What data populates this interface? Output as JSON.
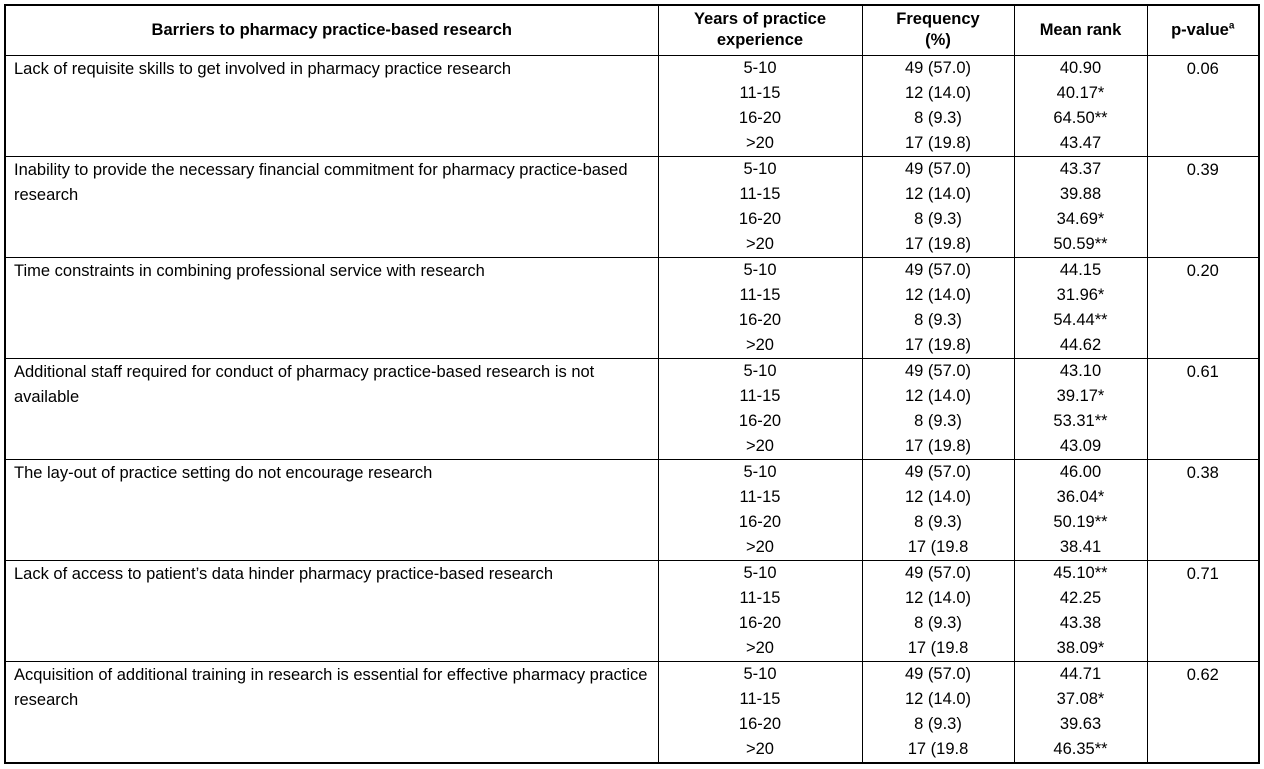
{
  "table": {
    "headers": {
      "barriers": "Barriers to pharmacy practice-based research",
      "years": "Years of practice\nexperience",
      "frequency": "Frequency\n(%)",
      "mean_rank": "Mean rank",
      "p_value": "p-value",
      "p_value_superscript": "a"
    },
    "groups": [
      {
        "barrier": "Lack of requisite skills to get involved in pharmacy practice research",
        "p_value": "0.06",
        "rows": [
          {
            "years": "5-10",
            "frequency": "49 (57.0)",
            "mean_rank": "40.90"
          },
          {
            "years": "11-15",
            "frequency": "12 (14.0)",
            "mean_rank": "40.17*"
          },
          {
            "years": "16-20",
            "frequency": "8 (9.3)",
            "mean_rank": "64.50**"
          },
          {
            "years": ">20",
            "frequency": "17 (19.8)",
            "mean_rank": "43.47"
          }
        ]
      },
      {
        "barrier": "Inability to provide the necessary financial commitment for pharmacy practice-based research",
        "p_value": "0.39",
        "rows": [
          {
            "years": "5-10",
            "frequency": "49 (57.0)",
            "mean_rank": "43.37"
          },
          {
            "years": "11-15",
            "frequency": "12 (14.0)",
            "mean_rank": "39.88"
          },
          {
            "years": "16-20",
            "frequency": "8 (9.3)",
            "mean_rank": "34.69*"
          },
          {
            "years": ">20",
            "frequency": "17 (19.8)",
            "mean_rank": "50.59**"
          }
        ]
      },
      {
        "barrier": "Time constraints in combining professional service with research",
        "p_value": "0.20",
        "rows": [
          {
            "years": "5-10",
            "frequency": "49 (57.0)",
            "mean_rank": "44.15"
          },
          {
            "years": "11-15",
            "frequency": "12 (14.0)",
            "mean_rank": "31.96*"
          },
          {
            "years": "16-20",
            "frequency": "8 (9.3)",
            "mean_rank": "54.44**"
          },
          {
            "years": ">20",
            "frequency": "17 (19.8)",
            "mean_rank": "44.62"
          }
        ]
      },
      {
        "barrier": "Additional staff required for conduct of pharmacy practice-based research is not available",
        "p_value": "0.61",
        "rows": [
          {
            "years": "5-10",
            "frequency": "49 (57.0)",
            "mean_rank": "43.10"
          },
          {
            "years": "11-15",
            "frequency": "12 (14.0)",
            "mean_rank": "39.17*"
          },
          {
            "years": "16-20",
            "frequency": "8 (9.3)",
            "mean_rank": "53.31**"
          },
          {
            "years": ">20",
            "frequency": "17 (19.8)",
            "mean_rank": "43.09"
          }
        ]
      },
      {
        "barrier": "The lay-out of practice setting do not encourage research",
        "p_value": "0.38",
        "rows": [
          {
            "years": "5-10",
            "frequency": "49 (57.0)",
            "mean_rank": "46.00"
          },
          {
            "years": "11-15",
            "frequency": "12 (14.0)",
            "mean_rank": "36.04*"
          },
          {
            "years": "16-20",
            "frequency": "8 (9.3)",
            "mean_rank": "50.19**"
          },
          {
            "years": ">20",
            "frequency": "17 (19.8",
            "mean_rank": "38.41"
          }
        ]
      },
      {
        "barrier": "Lack of access to patient’s data hinder pharmacy practice-based research",
        "p_value": "0.71",
        "rows": [
          {
            "years": "5-10",
            "frequency": "49 (57.0)",
            "mean_rank": "45.10**"
          },
          {
            "years": "11-15",
            "frequency": "12 (14.0)",
            "mean_rank": "42.25"
          },
          {
            "years": "16-20",
            "frequency": "8 (9.3)",
            "mean_rank": "43.38"
          },
          {
            "years": ">20",
            "frequency": "17 (19.8",
            "mean_rank": "38.09*"
          }
        ]
      },
      {
        "barrier": "Acquisition of additional training in research is essential for effective pharmacy practice research",
        "p_value": "0.62",
        "rows": [
          {
            "years": "5-10",
            "frequency": "49 (57.0)",
            "mean_rank": "44.71"
          },
          {
            "years": "11-15",
            "frequency": "12 (14.0)",
            "mean_rank": "37.08*"
          },
          {
            "years": "16-20",
            "frequency": "8 (9.3)",
            "mean_rank": "39.63"
          },
          {
            "years": ">20",
            "frequency": "17 (19.8",
            "mean_rank": "46.35**"
          }
        ]
      }
    ]
  }
}
